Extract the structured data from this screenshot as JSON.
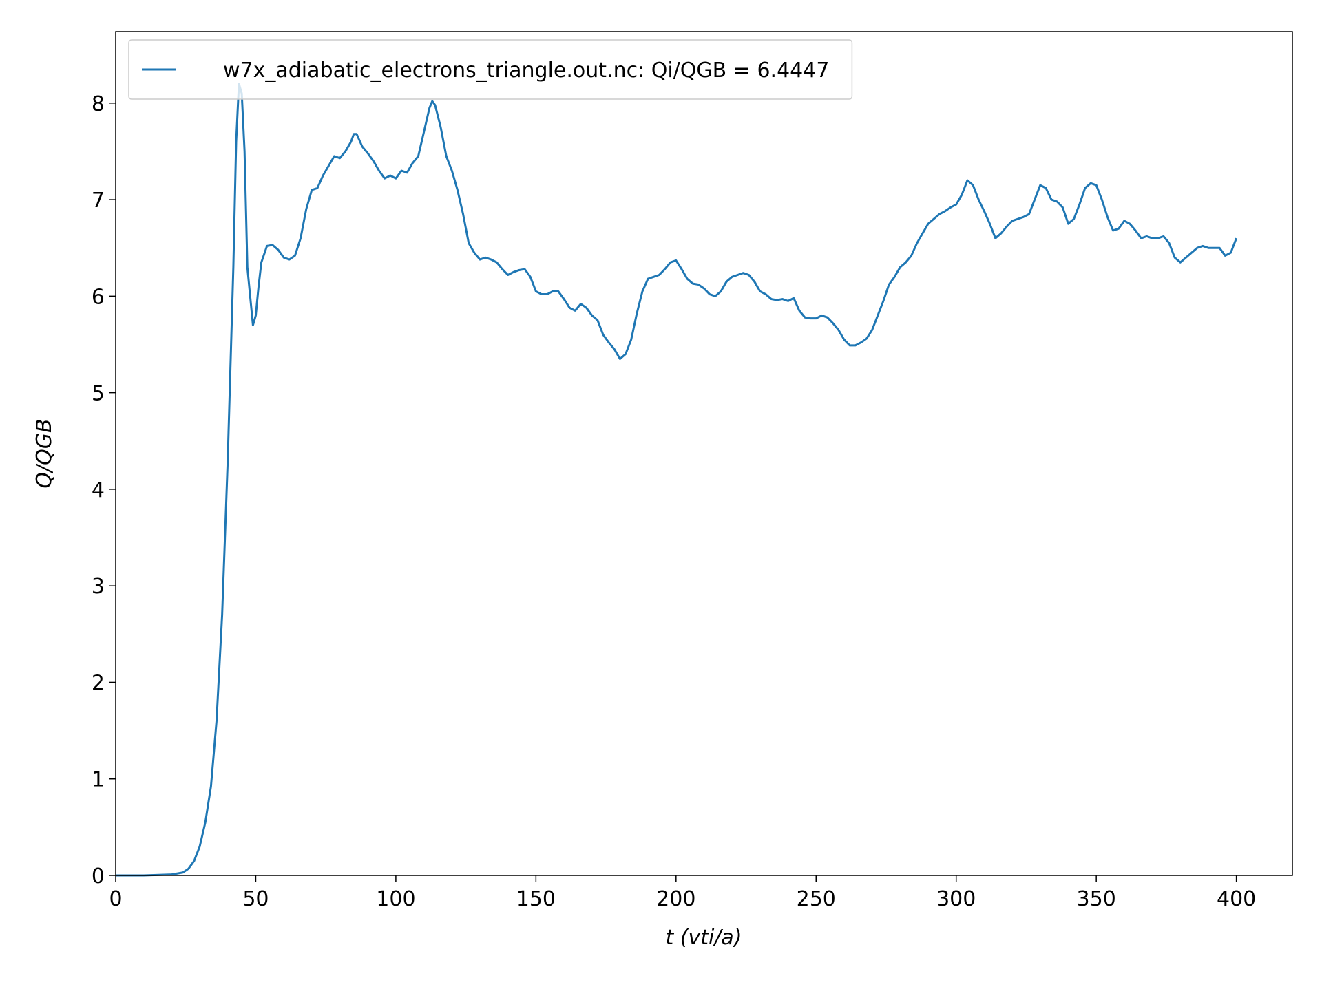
{
  "chart_data": {
    "type": "line",
    "x_label": "t (vti/a)",
    "y_label": "Q/QGB",
    "xlim": [
      0,
      420
    ],
    "ylim": [
      0,
      8.74
    ],
    "xticks": [
      0,
      50,
      100,
      150,
      200,
      250,
      300,
      350,
      400
    ],
    "yticks": [
      0,
      1,
      2,
      3,
      4,
      5,
      6,
      7,
      8
    ],
    "grid": false,
    "legend": "upper left",
    "x": [
      0,
      10,
      20,
      24,
      26,
      28,
      30,
      32,
      34,
      36,
      38,
      40,
      42,
      43,
      44,
      45,
      46,
      47,
      48,
      49,
      50,
      51,
      52,
      54,
      56,
      58,
      60,
      62,
      64,
      66,
      68,
      70,
      72,
      74,
      76,
      78,
      80,
      82,
      84,
      85,
      86,
      88,
      90,
      92,
      94,
      96,
      98,
      100,
      102,
      104,
      106,
      108,
      110,
      112,
      113,
      114,
      116,
      118,
      120,
      122,
      124,
      126,
      128,
      130,
      132,
      134,
      136,
      138,
      140,
      142,
      144,
      146,
      148,
      150,
      152,
      154,
      156,
      158,
      160,
      162,
      164,
      166,
      168,
      170,
      172,
      174,
      176,
      178,
      180,
      182,
      184,
      186,
      188,
      190,
      192,
      194,
      196,
      198,
      200,
      202,
      204,
      206,
      208,
      210,
      212,
      214,
      216,
      218,
      220,
      222,
      224,
      226,
      228,
      230,
      232,
      234,
      236,
      238,
      240,
      242,
      244,
      246,
      248,
      250,
      252,
      254,
      256,
      258,
      260,
      262,
      264,
      266,
      268,
      270,
      272,
      274,
      276,
      278,
      280,
      282,
      284,
      286,
      288,
      290,
      292,
      294,
      296,
      298,
      300,
      302,
      304,
      306,
      308,
      310,
      312,
      314,
      316,
      318,
      320,
      322,
      324,
      326,
      328,
      330,
      332,
      334,
      336,
      338,
      340,
      342,
      344,
      346,
      348,
      350,
      352,
      354,
      356,
      358,
      360,
      362,
      364,
      366,
      368,
      370,
      372,
      374,
      376,
      378,
      380,
      382,
      384,
      386,
      388,
      390,
      392,
      394,
      396,
      398,
      400
    ],
    "series": [
      {
        "name": "w7x_adiabatic_electrons_triangle.out.nc: Qi/QGB = 6.4447",
        "color": "#1f77b4",
        "values": [
          0,
          0,
          0.01,
          0.03,
          0.07,
          0.15,
          0.3,
          0.55,
          0.92,
          1.6,
          2.7,
          4.3,
          6.3,
          7.6,
          8.2,
          8.1,
          7.5,
          6.3,
          6.0,
          5.7,
          5.8,
          6.1,
          6.35,
          6.52,
          6.53,
          6.48,
          6.4,
          6.38,
          6.42,
          6.6,
          6.9,
          7.1,
          7.12,
          7.25,
          7.35,
          7.45,
          7.43,
          7.5,
          7.6,
          7.68,
          7.68,
          7.55,
          7.48,
          7.4,
          7.3,
          7.22,
          7.25,
          7.22,
          7.3,
          7.28,
          7.38,
          7.45,
          7.7,
          7.95,
          8.02,
          7.98,
          7.75,
          7.45,
          7.3,
          7.1,
          6.85,
          6.55,
          6.45,
          6.38,
          6.4,
          6.38,
          6.35,
          6.28,
          6.22,
          6.25,
          6.27,
          6.28,
          6.2,
          6.05,
          6.02,
          6.02,
          6.05,
          6.05,
          5.97,
          5.88,
          5.85,
          5.92,
          5.88,
          5.8,
          5.75,
          5.6,
          5.52,
          5.45,
          5.35,
          5.4,
          5.55,
          5.82,
          6.05,
          6.18,
          6.2,
          6.22,
          6.28,
          6.35,
          6.37,
          6.28,
          6.18,
          6.13,
          6.12,
          6.08,
          6.02,
          6.0,
          6.05,
          6.15,
          6.2,
          6.22,
          6.24,
          6.22,
          6.15,
          6.05,
          6.02,
          5.97,
          5.96,
          5.97,
          5.95,
          5.98,
          5.85,
          5.78,
          5.77,
          5.77,
          5.8,
          5.78,
          5.72,
          5.65,
          5.55,
          5.49,
          5.49,
          5.52,
          5.56,
          5.65,
          5.8,
          5.95,
          6.12,
          6.2,
          6.3,
          6.35,
          6.42,
          6.55,
          6.65,
          6.75,
          6.8,
          6.85,
          6.88,
          6.92,
          6.95,
          7.05,
          7.2,
          7.15,
          7.0,
          6.88,
          6.75,
          6.6,
          6.65,
          6.72,
          6.78,
          6.8,
          6.82,
          6.85,
          7.0,
          7.15,
          7.12,
          7.0,
          6.98,
          6.92,
          6.75,
          6.8,
          6.95,
          7.12,
          7.17,
          7.15,
          7.0,
          6.82,
          6.68,
          6.7,
          6.78,
          6.75,
          6.68,
          6.6,
          6.62,
          6.6,
          6.6,
          6.62,
          6.55,
          6.4,
          6.35,
          6.4,
          6.45,
          6.5,
          6.52,
          6.5,
          6.5,
          6.5,
          6.42,
          6.45,
          6.6
        ]
      }
    ]
  }
}
